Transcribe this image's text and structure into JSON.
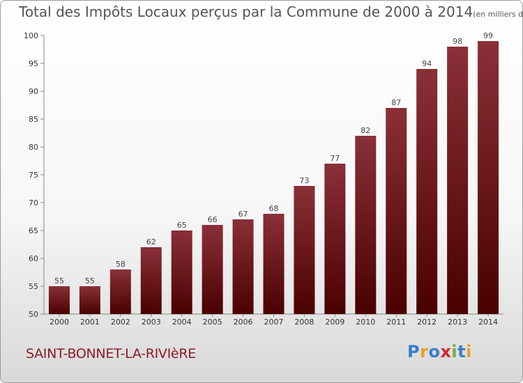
{
  "header": {
    "title": "Total des Impôts Locaux perçus par la Commune de 2000 à 2014",
    "unit": "(en milliers d'€)"
  },
  "footer": {
    "commune": "SAINT-BONNET-LA-RIVIèRE",
    "logo_text": "Proxiti",
    "logo_letters": [
      {
        "ch": "P",
        "color": "#3a7dc9"
      },
      {
        "ch": "r",
        "color": "#e8a21f"
      },
      {
        "ch": "o",
        "color": "#3a7dc9"
      },
      {
        "ch": "x",
        "color": "#d9262f"
      },
      {
        "ch": "i",
        "color": "#6bb33c"
      },
      {
        "ch": "t",
        "color": "#3a7dc9"
      },
      {
        "ch": "i",
        "color": "#e8a21f"
      }
    ]
  },
  "chart_data": {
    "type": "bar",
    "title": "Total des Impôts Locaux perçus par la Commune de 2000 à 2014",
    "xlabel": "",
    "ylabel": "",
    "categories": [
      "2000",
      "2001",
      "2002",
      "2003",
      "2004",
      "2005",
      "2006",
      "2007",
      "2008",
      "2009",
      "2010",
      "2011",
      "2012",
      "2013",
      "2014"
    ],
    "values": [
      55,
      55,
      58,
      62,
      65,
      66,
      67,
      68,
      73,
      77,
      82,
      87,
      94,
      98,
      99
    ],
    "ylim": [
      50,
      100
    ],
    "yticks": [
      50,
      55,
      60,
      65,
      70,
      75,
      80,
      85,
      90,
      95,
      100
    ],
    "grid": false,
    "bar_color_top": "#8a3038",
    "bar_color_bottom": "#4a0000"
  }
}
